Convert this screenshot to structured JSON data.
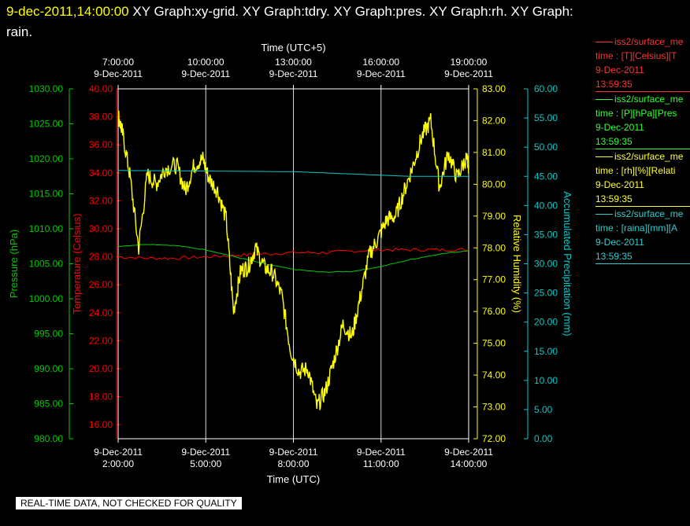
{
  "header": {
    "datetime": "9-dec-2011,14:00:00",
    "title_line1": " XY Graph:xy-grid.  XY Graph:tdry.  XY Graph:pres.  XY Graph:rh.  XY Graph:",
    "title_line2": "rain."
  },
  "colors": {
    "temperature": "#ff0000",
    "pressure": "#00cc00",
    "humidity": "#ffff00",
    "precip": "#00cccc",
    "grid": "#ffffff",
    "background": "#000000"
  },
  "legend": [
    {
      "color": "#ff3333",
      "series": "iss2/surface_me",
      "field": "time : [T][Celsius][T",
      "date": "9-Dec-2011",
      "time": "13:59:35"
    },
    {
      "color": "#33ff33",
      "series": "iss2/surface_me",
      "field": "time : [P][hPa][Pres",
      "date": "9-Dec-2011",
      "time": "13:59:35"
    },
    {
      "color": "#ffff33",
      "series": "iss2/surface_me",
      "field": "time : [rh][%][Relati",
      "date": "9-Dec-2011",
      "time": "13:59:35"
    },
    {
      "color": "#33cccc",
      "series": "iss2/surface_me",
      "field": "time : [raina][mm][A",
      "date": "9-Dec-2011",
      "time": "13:59:35"
    }
  ],
  "quality_note": "REAL-TIME DATA, NOT CHECKED FOR QUALITY",
  "chart_data": {
    "type": "line",
    "xlabel_bottom": "Time (UTC)",
    "xlabel_top": "Time (UTC+5)",
    "x_range_hours": [
      2.0,
      14.0
    ],
    "x_ticks_bottom": [
      {
        "hour": 2,
        "date": "9-Dec-2011",
        "time": "2:00:00"
      },
      {
        "hour": 5,
        "date": "9-Dec-2011",
        "time": "5:00:00"
      },
      {
        "hour": 8,
        "date": "9-Dec-2011",
        "time": "8:00:00"
      },
      {
        "hour": 11,
        "date": "9-Dec-2011",
        "time": "11:00:00"
      },
      {
        "hour": 14,
        "date": "9-Dec-2011",
        "time": "14:00:00"
      }
    ],
    "x_ticks_top": [
      {
        "hour": 2,
        "time": "7:00:00",
        "date": "9-Dec-2011"
      },
      {
        "hour": 5,
        "time": "10:00:00",
        "date": "9-Dec-2011"
      },
      {
        "hour": 8,
        "time": "13:00:00",
        "date": "9-Dec-2011"
      },
      {
        "hour": 11,
        "time": "16:00:00",
        "date": "9-Dec-2011"
      },
      {
        "hour": 14,
        "time": "19:00:00",
        "date": "9-Dec-2011"
      }
    ],
    "axes": {
      "pressure": {
        "label": "Pressure (hPa)",
        "range": [
          980,
          1030
        ],
        "ticks": [
          "980.00",
          "985.00",
          "990.00",
          "995.00",
          "1000.00",
          "1005.00",
          "1010.00",
          "1015.00",
          "1020.00",
          "1025.00",
          "1030.00"
        ]
      },
      "temperature": {
        "label": "Temperature (Celsius)",
        "range": [
          15,
          40
        ],
        "ticks": [
          "16.00",
          "18.00",
          "20.00",
          "22.00",
          "24.00",
          "26.00",
          "28.00",
          "30.00",
          "32.00",
          "34.00",
          "36.00",
          "38.00",
          "40.00"
        ]
      },
      "humidity": {
        "label": "Relative Humidity (%)",
        "range": [
          72,
          83
        ],
        "ticks": [
          "72.00",
          "73.00",
          "74.00",
          "75.00",
          "76.00",
          "77.00",
          "78.00",
          "79.00",
          "80.00",
          "81.00",
          "82.00",
          "83.00"
        ]
      },
      "precip": {
        "label": "Accumulated Precipitation (mm)",
        "range": [
          0,
          60
        ],
        "ticks": [
          "0.00",
          "5.00",
          "10.00",
          "15.00",
          "20.00",
          "25.00",
          "30.00",
          "35.00",
          "40.00",
          "45.00",
          "50.00",
          "55.00",
          "60.00"
        ]
      }
    },
    "series": [
      {
        "name": "Temperature",
        "axis": "temperature",
        "x": [
          2.0,
          3.0,
          4.0,
          5.0,
          6.0,
          7.0,
          8.0,
          9.0,
          10.0,
          11.0,
          12.0,
          13.0,
          14.0
        ],
        "y": [
          28.0,
          27.9,
          27.9,
          28.0,
          28.1,
          28.2,
          28.3,
          28.3,
          28.4,
          28.5,
          28.5,
          28.5,
          28.5
        ]
      },
      {
        "name": "Pressure",
        "axis": "pressure",
        "x": [
          2.0,
          3.0,
          4.0,
          5.0,
          6.0,
          7.0,
          8.0,
          9.0,
          10.0,
          11.0,
          12.0,
          13.0,
          14.0
        ],
        "y": [
          1007.5,
          1007.8,
          1007.6,
          1007.0,
          1006.0,
          1005.0,
          1004.2,
          1003.8,
          1003.9,
          1004.6,
          1005.6,
          1006.4,
          1006.9
        ]
      },
      {
        "name": "Relative Humidity",
        "axis": "humidity",
        "x": [
          2.0,
          2.15,
          2.4,
          2.7,
          3.0,
          3.3,
          3.6,
          4.0,
          4.3,
          4.6,
          4.9,
          5.1,
          5.4,
          5.7,
          5.95,
          6.2,
          6.45,
          6.7,
          7.0,
          7.3,
          7.6,
          7.9,
          8.2,
          8.5,
          8.8,
          9.1,
          9.4,
          9.7,
          10.0,
          10.3,
          10.6,
          10.9,
          11.2,
          11.5,
          11.8,
          12.1,
          12.4,
          12.7,
          13.0,
          13.3,
          13.6,
          13.9,
          14.0
        ],
        "y": [
          82.2,
          81.6,
          80.3,
          78.0,
          80.3,
          80.0,
          80.5,
          80.6,
          79.8,
          80.6,
          80.8,
          80.2,
          79.8,
          78.9,
          76.0,
          77.3,
          77.4,
          78.0,
          77.4,
          77.2,
          76.5,
          74.8,
          74.1,
          74.2,
          73.0,
          73.5,
          74.5,
          75.6,
          75.2,
          76.5,
          77.8,
          78.3,
          78.9,
          79.0,
          79.8,
          80.6,
          81.5,
          82.0,
          79.9,
          81.0,
          80.2,
          80.8,
          80.6
        ]
      },
      {
        "name": "Accumulated Precipitation",
        "axis": "precip",
        "x": [
          2.0,
          8.0,
          10.0,
          12.0,
          14.0
        ],
        "y": [
          46.0,
          45.8,
          45.4,
          45.0,
          45.0
        ]
      }
    ]
  }
}
